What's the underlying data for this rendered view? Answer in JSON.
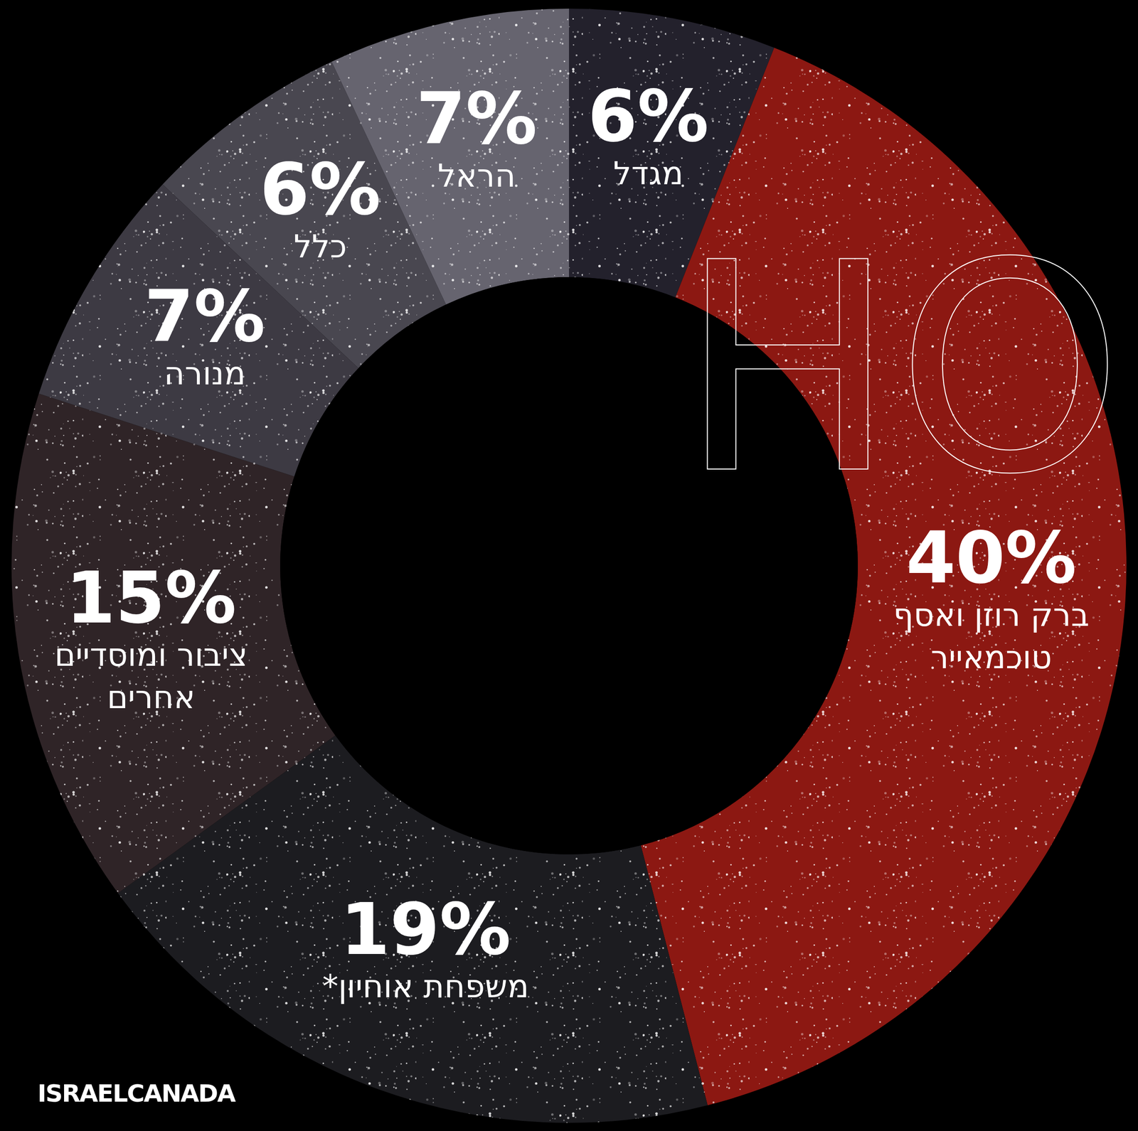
{
  "chart_data": {
    "type": "donut",
    "categories": [
      "מגדל",
      "ברק רוזן ואסף טוכמאייר",
      "משפחת אוחיון*",
      "ציבור ומוסדיים אחרים",
      "מנורה",
      "כלל",
      "הראל"
    ],
    "values": [
      6,
      40,
      19,
      15,
      7,
      6,
      7
    ],
    "value_labels": [
      "6%",
      "40%",
      "19%",
      "15%",
      "7%",
      "6%",
      "7%"
    ],
    "colors": [
      "#23212c",
      "#8c1812",
      "#1c1c20",
      "#2f2427",
      "#3d3a43",
      "#494750",
      "#66646f"
    ],
    "data_labels": true,
    "annotations": [
      "HO",
      "ISRAELCANADA"
    ]
  }
}
